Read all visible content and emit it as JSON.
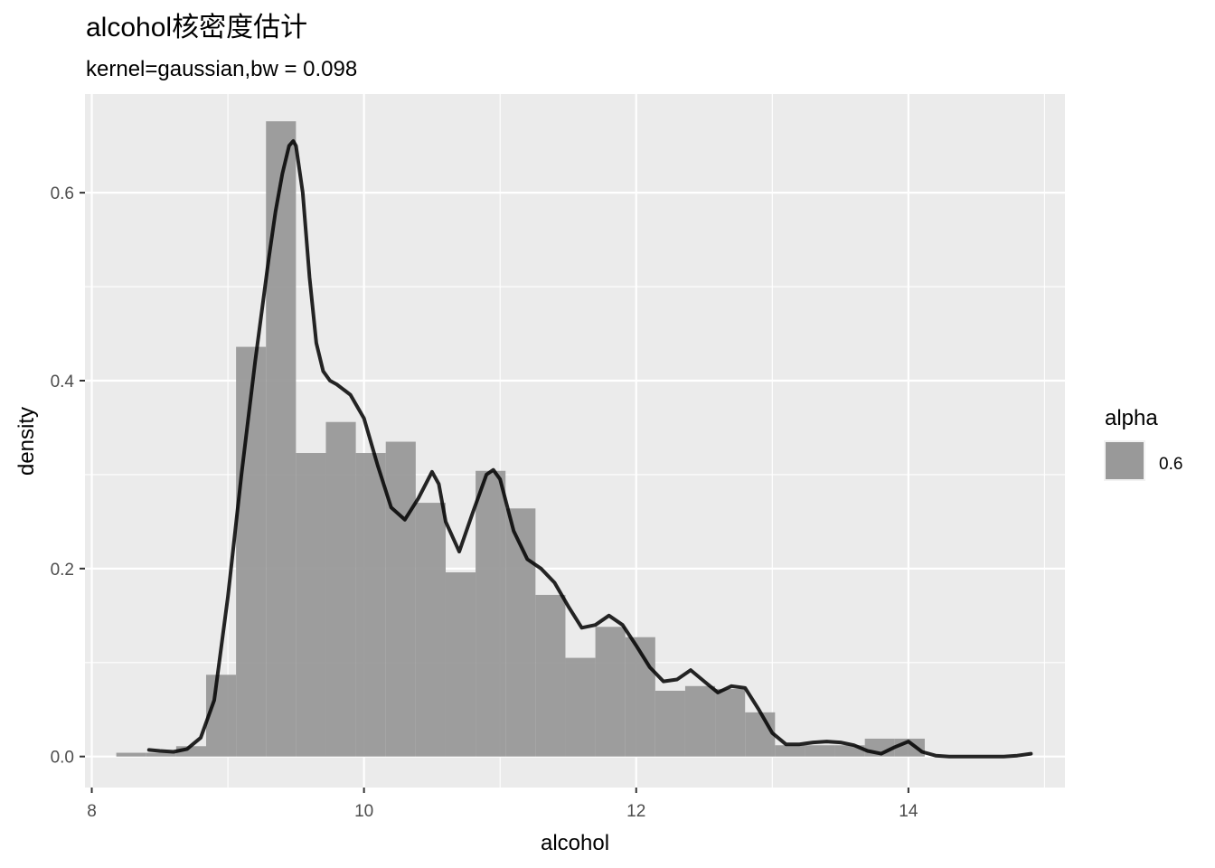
{
  "chart_data": {
    "type": "histogram_density",
    "title": "alcohol核密度估计",
    "subtitle": "kernel=gaussian,bw = 0.098",
    "xlabel": "alcohol",
    "ylabel": "density",
    "xlim": [
      7.95,
      15.15
    ],
    "ylim": [
      -0.033,
      0.705
    ],
    "x_ticks": [
      8,
      10,
      12,
      14
    ],
    "x_tick_labels": [
      "8",
      "10",
      "12",
      "14"
    ],
    "y_ticks": [
      0.0,
      0.2,
      0.4,
      0.6
    ],
    "y_tick_labels": [
      "0.0",
      "0.2",
      "0.4",
      "0.6"
    ],
    "x_minor": [
      9,
      11,
      13,
      15
    ],
    "y_minor": [
      0.1,
      0.3,
      0.5
    ],
    "grid": true,
    "colors": {
      "panel": "#ebebeb",
      "grid": "#ffffff",
      "bar": "#999999",
      "line": "#000000"
    },
    "bins": [
      {
        "x0": 8.18,
        "x1": 8.4,
        "density": 0.004
      },
      {
        "x0": 8.4,
        "x1": 8.62,
        "density": 0.004
      },
      {
        "x0": 8.62,
        "x1": 8.84,
        "density": 0.011
      },
      {
        "x0": 8.84,
        "x1": 9.06,
        "density": 0.087
      },
      {
        "x0": 9.06,
        "x1": 9.28,
        "density": 0.436
      },
      {
        "x0": 9.28,
        "x1": 9.5,
        "density": 0.676
      },
      {
        "x0": 9.5,
        "x1": 9.72,
        "density": 0.323
      },
      {
        "x0": 9.72,
        "x1": 9.94,
        "density": 0.356
      },
      {
        "x0": 9.94,
        "x1": 10.16,
        "density": 0.323
      },
      {
        "x0": 10.16,
        "x1": 10.38,
        "density": 0.335
      },
      {
        "x0": 10.38,
        "x1": 10.6,
        "density": 0.27
      },
      {
        "x0": 10.6,
        "x1": 10.82,
        "density": 0.196
      },
      {
        "x0": 10.82,
        "x1": 11.04,
        "density": 0.304
      },
      {
        "x0": 11.04,
        "x1": 11.26,
        "density": 0.264
      },
      {
        "x0": 11.26,
        "x1": 11.48,
        "density": 0.172
      },
      {
        "x0": 11.48,
        "x1": 11.7,
        "density": 0.105
      },
      {
        "x0": 11.7,
        "x1": 11.92,
        "density": 0.138
      },
      {
        "x0": 11.92,
        "x1": 12.14,
        "density": 0.127
      },
      {
        "x0": 12.14,
        "x1": 12.36,
        "density": 0.07
      },
      {
        "x0": 12.36,
        "x1": 12.58,
        "density": 0.075
      },
      {
        "x0": 12.58,
        "x1": 12.8,
        "density": 0.072
      },
      {
        "x0": 12.8,
        "x1": 13.02,
        "density": 0.047
      },
      {
        "x0": 13.02,
        "x1": 13.24,
        "density": 0.012
      },
      {
        "x0": 13.24,
        "x1": 13.46,
        "density": 0.012
      },
      {
        "x0": 13.46,
        "x1": 13.68,
        "density": 0.012
      },
      {
        "x0": 13.68,
        "x1": 13.9,
        "density": 0.019
      },
      {
        "x0": 13.9,
        "x1": 14.12,
        "density": 0.019
      }
    ],
    "density_curve": {
      "x": [
        8.42,
        8.5,
        8.6,
        8.7,
        8.8,
        8.9,
        9.0,
        9.1,
        9.2,
        9.3,
        9.35,
        9.4,
        9.45,
        9.48,
        9.5,
        9.55,
        9.6,
        9.65,
        9.7,
        9.75,
        9.8,
        9.9,
        10.0,
        10.1,
        10.2,
        10.3,
        10.4,
        10.5,
        10.55,
        10.6,
        10.7,
        10.8,
        10.9,
        10.95,
        11.0,
        11.1,
        11.2,
        11.3,
        11.4,
        11.5,
        11.6,
        11.7,
        11.8,
        11.9,
        12.0,
        12.1,
        12.2,
        12.3,
        12.4,
        12.5,
        12.6,
        12.7,
        12.8,
        12.9,
        13.0,
        13.1,
        13.2,
        13.3,
        13.4,
        13.5,
        13.6,
        13.7,
        13.8,
        13.9,
        14.0,
        14.1,
        14.2,
        14.3,
        14.4,
        14.5,
        14.6,
        14.7,
        14.8,
        14.9
      ],
      "y": [
        0.007,
        0.006,
        0.005,
        0.008,
        0.02,
        0.06,
        0.17,
        0.3,
        0.42,
        0.53,
        0.58,
        0.62,
        0.65,
        0.655,
        0.65,
        0.6,
        0.51,
        0.44,
        0.41,
        0.4,
        0.396,
        0.385,
        0.36,
        0.31,
        0.265,
        0.252,
        0.275,
        0.303,
        0.29,
        0.25,
        0.218,
        0.26,
        0.3,
        0.305,
        0.295,
        0.24,
        0.21,
        0.2,
        0.185,
        0.16,
        0.137,
        0.14,
        0.15,
        0.14,
        0.118,
        0.095,
        0.08,
        0.082,
        0.092,
        0.08,
        0.068,
        0.075,
        0.073,
        0.05,
        0.025,
        0.013,
        0.013,
        0.015,
        0.016,
        0.015,
        0.012,
        0.006,
        0.003,
        0.01,
        0.016,
        0.005,
        0.001,
        0.0,
        0.0,
        0.0,
        0.0,
        0.0,
        0.001,
        0.003
      ]
    },
    "legend": {
      "title": "alpha",
      "items": [
        {
          "label": "0.6",
          "color": "#999999"
        }
      ],
      "position": "right"
    }
  }
}
